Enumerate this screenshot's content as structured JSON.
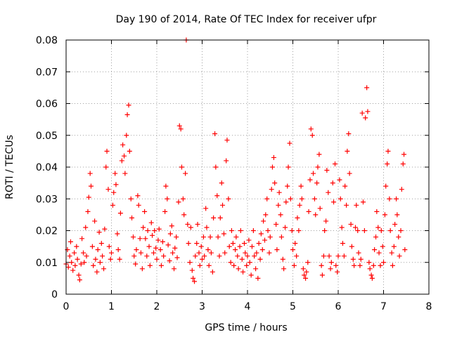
{
  "chart_data": {
    "type": "scatter",
    "title": "Day 190 of 2014, Rate Of TEC Index for receiver ufpr",
    "xlabel": "GPS time / hours",
    "ylabel": "ROTI / TECUs",
    "xlim": [
      0,
      8
    ],
    "ylim": [
      0,
      0.08
    ],
    "grid": true,
    "marker": "+",
    "color": "#ff0000",
    "x_ticks": [
      0,
      1,
      2,
      3,
      4,
      5,
      6,
      7,
      8
    ],
    "x_tick_labels": [
      "0",
      "1",
      "2",
      "3",
      "4",
      "5",
      "6",
      "7",
      "8"
    ],
    "y_ticks": [
      0,
      0.01,
      0.02,
      0.03,
      0.04,
      0.05,
      0.06,
      0.07,
      0.08
    ],
    "y_tick_labels": [
      "0",
      "0.01",
      "0.02",
      "0.03",
      "0.04",
      "0.05",
      "0.06",
      "0.07",
      "0.08"
    ],
    "series": [
      {
        "name": "ROTI",
        "points": [
          [
            0.0,
            0.0095
          ],
          [
            0.03,
            0.014
          ],
          [
            0.05,
            0.0085
          ],
          [
            0.08,
            0.012
          ],
          [
            0.1,
            0.0165
          ],
          [
            0.12,
            0.01
          ],
          [
            0.15,
            0.0075
          ],
          [
            0.18,
            0.013
          ],
          [
            0.2,
            0.009
          ],
          [
            0.23,
            0.015
          ],
          [
            0.25,
            0.011
          ],
          [
            0.28,
            0.006
          ],
          [
            0.3,
            0.0045
          ],
          [
            0.33,
            0.0095
          ],
          [
            0.35,
            0.0175
          ],
          [
            0.38,
            0.013
          ],
          [
            0.4,
            0.01
          ],
          [
            0.43,
            0.021
          ],
          [
            0.45,
            0.012
          ],
          [
            0.48,
            0.026
          ],
          [
            0.5,
            0.0305
          ],
          [
            0.53,
            0.038
          ],
          [
            0.55,
            0.034
          ],
          [
            0.58,
            0.015
          ],
          [
            0.6,
            0.009
          ],
          [
            0.63,
            0.023
          ],
          [
            0.65,
            0.011
          ],
          [
            0.68,
            0.007
          ],
          [
            0.7,
            0.014
          ],
          [
            0.73,
            0.0195
          ],
          [
            0.75,
            0.01
          ],
          [
            0.78,
            0.016
          ],
          [
            0.8,
            0.012
          ],
          [
            0.83,
            0.008
          ],
          [
            0.85,
            0.0205
          ],
          [
            0.88,
            0.04
          ],
          [
            0.9,
            0.045
          ],
          [
            0.93,
            0.033
          ],
          [
            0.95,
            0.015
          ],
          [
            0.98,
            0.011
          ],
          [
            1.0,
            0.013
          ],
          [
            1.03,
            0.028
          ],
          [
            1.05,
            0.032
          ],
          [
            1.08,
            0.038
          ],
          [
            1.1,
            0.0345
          ],
          [
            1.13,
            0.019
          ],
          [
            1.15,
            0.014
          ],
          [
            1.18,
            0.011
          ],
          [
            1.2,
            0.0255
          ],
          [
            1.23,
            0.042
          ],
          [
            1.25,
            0.047
          ],
          [
            1.28,
            0.0435
          ],
          [
            1.3,
            0.038
          ],
          [
            1.33,
            0.05
          ],
          [
            1.35,
            0.0565
          ],
          [
            1.38,
            0.0595
          ],
          [
            1.4,
            0.045
          ],
          [
            1.43,
            0.03
          ],
          [
            1.45,
            0.024
          ],
          [
            1.48,
            0.018
          ],
          [
            1.5,
            0.012
          ],
          [
            1.53,
            0.0095
          ],
          [
            1.55,
            0.014
          ],
          [
            1.58,
            0.031
          ],
          [
            1.6,
            0.028
          ],
          [
            1.63,
            0.0175
          ],
          [
            1.65,
            0.013
          ],
          [
            1.68,
            0.008
          ],
          [
            1.7,
            0.021
          ],
          [
            1.73,
            0.026
          ],
          [
            1.75,
            0.0175
          ],
          [
            1.78,
            0.012
          ],
          [
            1.8,
            0.02
          ],
          [
            1.83,
            0.015
          ],
          [
            1.85,
            0.009
          ],
          [
            1.88,
            0.0225
          ],
          [
            1.9,
            0.0185
          ],
          [
            1.93,
            0.013
          ],
          [
            1.95,
            0.02
          ],
          [
            1.98,
            0.0145
          ],
          [
            2.0,
            0.011
          ],
          [
            2.03,
            0.017
          ],
          [
            2.05,
            0.0205
          ],
          [
            2.08,
            0.014
          ],
          [
            2.1,
            0.009
          ],
          [
            2.13,
            0.0165
          ],
          [
            2.15,
            0.012
          ],
          [
            2.18,
            0.026
          ],
          [
            2.2,
            0.034
          ],
          [
            2.23,
            0.03
          ],
          [
            2.25,
            0.0155
          ],
          [
            2.28,
            0.0105
          ],
          [
            2.3,
            0.019
          ],
          [
            2.33,
            0.0215
          ],
          [
            2.35,
            0.013
          ],
          [
            2.38,
            0.008
          ],
          [
            2.4,
            0.0145
          ],
          [
            2.43,
            0.018
          ],
          [
            2.45,
            0.0115
          ],
          [
            2.48,
            0.029
          ],
          [
            2.5,
            0.053
          ],
          [
            2.53,
            0.052
          ],
          [
            2.55,
            0.04
          ],
          [
            2.58,
            0.03
          ],
          [
            2.6,
            0.025
          ],
          [
            2.63,
            0.038
          ],
          [
            2.65,
            0.08
          ],
          [
            2.68,
            0.022
          ],
          [
            2.7,
            0.016
          ],
          [
            2.73,
            0.01
          ],
          [
            2.75,
            0.021
          ],
          [
            2.78,
            0.0075
          ],
          [
            2.8,
            0.005
          ],
          [
            2.83,
            0.004
          ],
          [
            2.85,
            0.012
          ],
          [
            2.88,
            0.016
          ],
          [
            2.9,
            0.022
          ],
          [
            2.93,
            0.013
          ],
          [
            2.95,
            0.009
          ],
          [
            2.98,
            0.015
          ],
          [
            3.0,
            0.011
          ],
          [
            3.03,
            0.018
          ],
          [
            3.05,
            0.012
          ],
          [
            3.08,
            0.027
          ],
          [
            3.1,
            0.021
          ],
          [
            3.13,
            0.014
          ],
          [
            3.15,
            0.009
          ],
          [
            3.18,
            0.018
          ],
          [
            3.2,
            0.013
          ],
          [
            3.23,
            0.007
          ],
          [
            3.25,
            0.024
          ],
          [
            3.28,
            0.0505
          ],
          [
            3.3,
            0.04
          ],
          [
            3.33,
            0.031
          ],
          [
            3.35,
            0.018
          ],
          [
            3.38,
            0.012
          ],
          [
            3.4,
            0.024
          ],
          [
            3.43,
            0.035
          ],
          [
            3.45,
            0.028
          ],
          [
            3.48,
            0.019
          ],
          [
            3.5,
            0.013
          ],
          [
            3.53,
            0.042
          ],
          [
            3.55,
            0.0485
          ],
          [
            3.58,
            0.03
          ],
          [
            3.6,
            0.015
          ],
          [
            3.63,
            0.01
          ],
          [
            3.65,
            0.02
          ],
          [
            3.68,
            0.016
          ],
          [
            3.7,
            0.009
          ],
          [
            3.73,
            0.014
          ],
          [
            3.75,
            0.018
          ],
          [
            3.78,
            0.012
          ],
          [
            3.8,
            0.008
          ],
          [
            3.83,
            0.015
          ],
          [
            3.85,
            0.02
          ],
          [
            3.88,
            0.011
          ],
          [
            3.9,
            0.007
          ],
          [
            3.93,
            0.016
          ],
          [
            3.95,
            0.013
          ],
          [
            3.98,
            0.009
          ],
          [
            4.0,
            0.012
          ],
          [
            4.03,
            0.017
          ],
          [
            4.05,
            0.01
          ],
          [
            4.08,
            0.006
          ],
          [
            4.1,
            0.015
          ],
          [
            4.13,
            0.02
          ],
          [
            4.15,
            0.012
          ],
          [
            4.18,
            0.008
          ],
          [
            4.2,
            0.013
          ],
          [
            4.23,
            0.005
          ],
          [
            4.25,
            0.016
          ],
          [
            4.28,
            0.011
          ],
          [
            4.3,
            0.019
          ],
          [
            4.33,
            0.014
          ],
          [
            4.35,
            0.023
          ],
          [
            4.38,
            0.017
          ],
          [
            4.4,
            0.025
          ],
          [
            4.43,
            0.03
          ],
          [
            4.45,
            0.02
          ],
          [
            4.48,
            0.013
          ],
          [
            4.5,
            0.018
          ],
          [
            4.53,
            0.033
          ],
          [
            4.55,
            0.04
          ],
          [
            4.58,
            0.043
          ],
          [
            4.6,
            0.035
          ],
          [
            4.63,
            0.022
          ],
          [
            4.65,
            0.014
          ],
          [
            4.68,
            0.028
          ],
          [
            4.7,
            0.032
          ],
          [
            4.73,
            0.025
          ],
          [
            4.75,
            0.018
          ],
          [
            4.78,
            0.011
          ],
          [
            4.8,
            0.008
          ],
          [
            4.83,
            0.021
          ],
          [
            4.85,
            0.029
          ],
          [
            4.88,
            0.034
          ],
          [
            4.9,
            0.04
          ],
          [
            4.93,
            0.0475
          ],
          [
            4.95,
            0.03
          ],
          [
            4.98,
            0.02
          ],
          [
            5.0,
            0.014
          ],
          [
            5.03,
            0.009
          ],
          [
            5.05,
            0.016
          ],
          [
            5.08,
            0.012
          ],
          [
            5.1,
            0.024
          ],
          [
            5.13,
            0.02
          ],
          [
            5.15,
            0.028
          ],
          [
            5.18,
            0.034
          ],
          [
            5.2,
            0.03
          ],
          [
            5.23,
            0.008
          ],
          [
            5.25,
            0.006
          ],
          [
            5.28,
            0.005
          ],
          [
            5.3,
            0.007
          ],
          [
            5.33,
            0.01
          ],
          [
            5.35,
            0.026
          ],
          [
            5.38,
            0.036
          ],
          [
            5.4,
            0.052
          ],
          [
            5.43,
            0.05
          ],
          [
            5.45,
            0.038
          ],
          [
            5.48,
            0.03
          ],
          [
            5.5,
            0.025
          ],
          [
            5.53,
            0.035
          ],
          [
            5.55,
            0.04
          ],
          [
            5.58,
            0.044
          ],
          [
            5.6,
            0.027
          ],
          [
            5.63,
            0.009
          ],
          [
            5.65,
            0.006
          ],
          [
            5.68,
            0.012
          ],
          [
            5.7,
            0.02
          ],
          [
            5.73,
            0.023
          ],
          [
            5.75,
            0.039
          ],
          [
            5.78,
            0.032
          ],
          [
            5.8,
            0.012
          ],
          [
            5.83,
            0.008
          ],
          [
            5.85,
            0.01
          ],
          [
            5.88,
            0.035
          ],
          [
            5.9,
            0.029
          ],
          [
            5.93,
            0.041
          ],
          [
            5.95,
            0.009
          ],
          [
            5.98,
            0.007
          ],
          [
            6.0,
            0.012
          ],
          [
            6.03,
            0.036
          ],
          [
            6.05,
            0.03
          ],
          [
            6.08,
            0.021
          ],
          [
            6.1,
            0.016
          ],
          [
            6.13,
            0.012
          ],
          [
            6.15,
            0.034
          ],
          [
            6.18,
            0.028
          ],
          [
            6.2,
            0.045
          ],
          [
            6.23,
            0.0505
          ],
          [
            6.25,
            0.038
          ],
          [
            6.28,
            0.022
          ],
          [
            6.3,
            0.015
          ],
          [
            6.33,
            0.011
          ],
          [
            6.35,
            0.009
          ],
          [
            6.38,
            0.021
          ],
          [
            6.4,
            0.028
          ],
          [
            6.43,
            0.02
          ],
          [
            6.45,
            0.013
          ],
          [
            6.48,
            0.009
          ],
          [
            6.5,
            0.011
          ],
          [
            6.53,
            0.057
          ],
          [
            6.55,
            0.029
          ],
          [
            6.58,
            0.02
          ],
          [
            6.6,
            0.0555
          ],
          [
            6.63,
            0.065
          ],
          [
            6.65,
            0.0575
          ],
          [
            6.68,
            0.01
          ],
          [
            6.7,
            0.008
          ],
          [
            6.73,
            0.006
          ],
          [
            6.75,
            0.005
          ],
          [
            6.78,
            0.009
          ],
          [
            6.8,
            0.014
          ],
          [
            6.83,
            0.018
          ],
          [
            6.85,
            0.026
          ],
          [
            6.88,
            0.021
          ],
          [
            6.9,
            0.013
          ],
          [
            6.93,
            0.009
          ],
          [
            6.95,
            0.02
          ],
          [
            6.98,
            0.015
          ],
          [
            7.0,
            0.01
          ],
          [
            7.03,
            0.025
          ],
          [
            7.05,
            0.034
          ],
          [
            7.08,
            0.041
          ],
          [
            7.1,
            0.045
          ],
          [
            7.13,
            0.03
          ],
          [
            7.15,
            0.02
          ],
          [
            7.18,
            0.013
          ],
          [
            7.2,
            0.009
          ],
          [
            7.23,
            0.015
          ],
          [
            7.25,
            0.022
          ],
          [
            7.28,
            0.03
          ],
          [
            7.3,
            0.025
          ],
          [
            7.33,
            0.018
          ],
          [
            7.35,
            0.012
          ],
          [
            7.38,
            0.02
          ],
          [
            7.4,
            0.033
          ],
          [
            7.43,
            0.041
          ],
          [
            7.45,
            0.044
          ],
          [
            7.47,
            0.014
          ]
        ]
      }
    ]
  }
}
